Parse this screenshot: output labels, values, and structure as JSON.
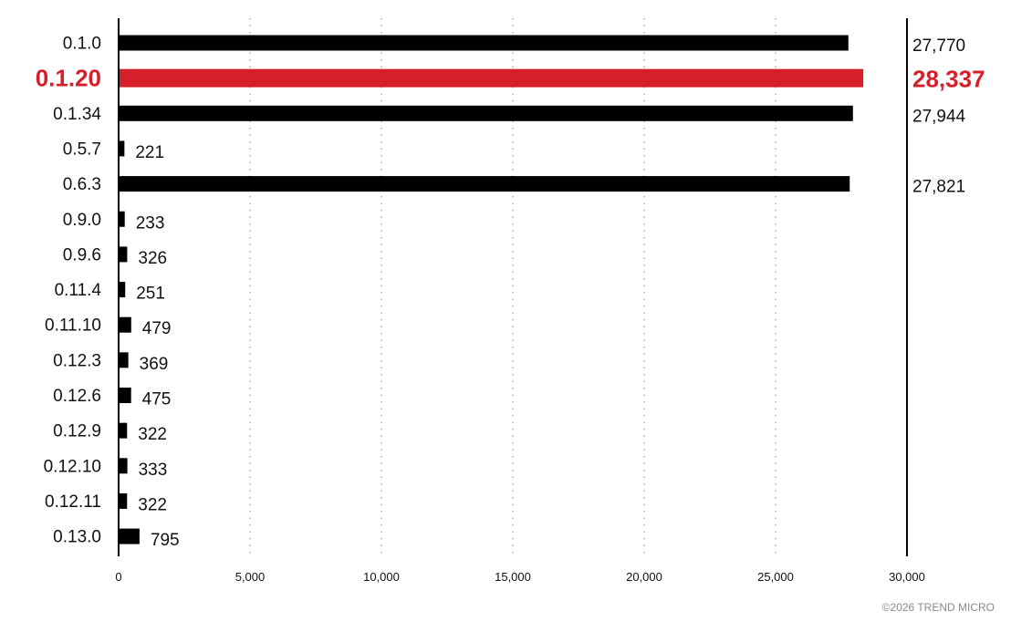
{
  "chart_data": {
    "type": "bar",
    "orientation": "horizontal",
    "categories": [
      "0.1.0",
      "0.1.20",
      "0.1.34",
      "0.5.7",
      "0.6.3",
      "0.9.0",
      "0.9.6",
      "0.11.4",
      "0.11.10",
      "0.12.3",
      "0.12.6",
      "0.12.9",
      "0.12.10",
      "0.12.11",
      "0.13.0"
    ],
    "values": [
      27770,
      28337,
      27944,
      221,
      27821,
      233,
      326,
      251,
      479,
      369,
      475,
      322,
      333,
      322,
      795
    ],
    "value_labels": [
      "27,770",
      "28,337",
      "27,944",
      "221",
      "27,821",
      "233",
      "326",
      "251",
      "479",
      "369",
      "475",
      "322",
      "333",
      "322",
      "795"
    ],
    "highlight": "0.1.20",
    "xlim": [
      0,
      30000
    ],
    "xticks": [
      0,
      5000,
      10000,
      15000,
      20000,
      25000,
      30000
    ],
    "xtick_labels": [
      "0",
      "5,000",
      "10,000",
      "15,000",
      "20,000",
      "25,000",
      "30,000"
    ],
    "grid": "vertical-dotted",
    "colors": {
      "bar": "#000000",
      "highlight": "#d71f2b",
      "grid": "#9a9a9a"
    }
  },
  "footer": {
    "copyright": "©2026 TREND MICRO"
  }
}
